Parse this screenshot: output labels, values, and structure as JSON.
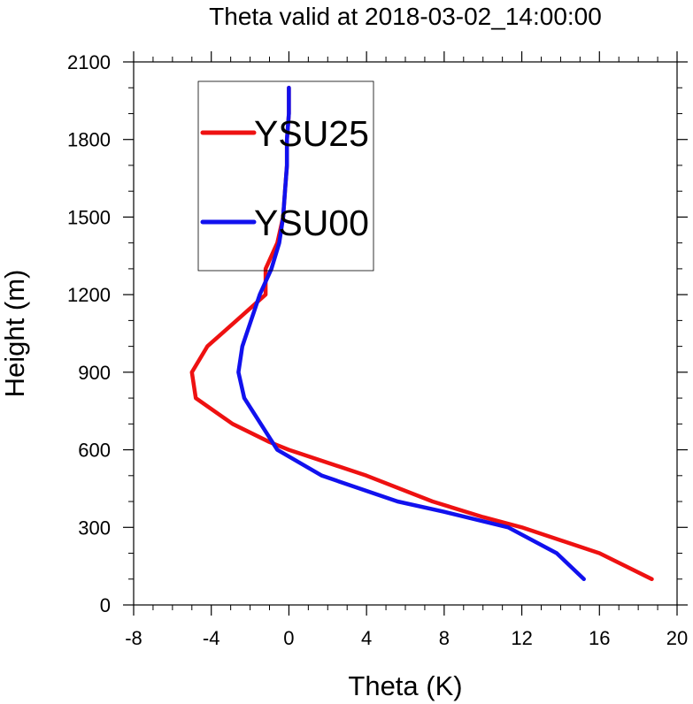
{
  "chart_data": {
    "type": "line",
    "title": "Theta valid at 2018-03-02_14:00:00",
    "xlabel": "Theta (K)",
    "ylabel": "Height (m)",
    "xlim": [
      -8,
      20
    ],
    "ylim": [
      0,
      2100
    ],
    "xticks": [
      "-8",
      "-4",
      "0",
      "4",
      "8",
      "12",
      "16",
      "20"
    ],
    "yticks": [
      "0",
      "300",
      "600",
      "900",
      "1200",
      "1500",
      "1800",
      "2100"
    ],
    "grid": false,
    "legend_position": "top-left",
    "series": [
      {
        "name": "YSU25",
        "color": "#ee1111",
        "points": [
          [
            18.7,
            100
          ],
          [
            16.0,
            200
          ],
          [
            14.0,
            250
          ],
          [
            12.0,
            300
          ],
          [
            10.0,
            340
          ],
          [
            7.4,
            400
          ],
          [
            4.0,
            500
          ],
          [
            0.0,
            600
          ],
          [
            -1.0,
            630
          ],
          [
            -2.9,
            700
          ],
          [
            -4.8,
            800
          ],
          [
            -5.0,
            900
          ],
          [
            -4.2,
            1000
          ],
          [
            -2.7,
            1100
          ],
          [
            -1.2,
            1200
          ],
          [
            -1.2,
            1300
          ],
          [
            -0.6,
            1400
          ],
          [
            -0.3,
            1500
          ],
          [
            -0.2,
            1600
          ],
          [
            -0.1,
            1700
          ],
          [
            -0.1,
            1800
          ],
          [
            0.0,
            1900
          ],
          [
            0.0,
            2000
          ]
        ]
      },
      {
        "name": "YSU00",
        "color": "#1111ee",
        "points": [
          [
            15.2,
            100
          ],
          [
            13.8,
            200
          ],
          [
            11.3,
            300
          ],
          [
            8.0,
            360
          ],
          [
            5.6,
            400
          ],
          [
            1.7,
            500
          ],
          [
            -0.6,
            600
          ],
          [
            -2.3,
            800
          ],
          [
            -2.6,
            900
          ],
          [
            -2.4,
            1000
          ],
          [
            -1.5,
            1200
          ],
          [
            -0.9,
            1300
          ],
          [
            -0.5,
            1400
          ],
          [
            -0.3,
            1500
          ],
          [
            -0.2,
            1600
          ],
          [
            -0.1,
            1700
          ],
          [
            -0.1,
            1800
          ],
          [
            0.0,
            1900
          ],
          [
            0.0,
            2000
          ]
        ]
      }
    ]
  }
}
